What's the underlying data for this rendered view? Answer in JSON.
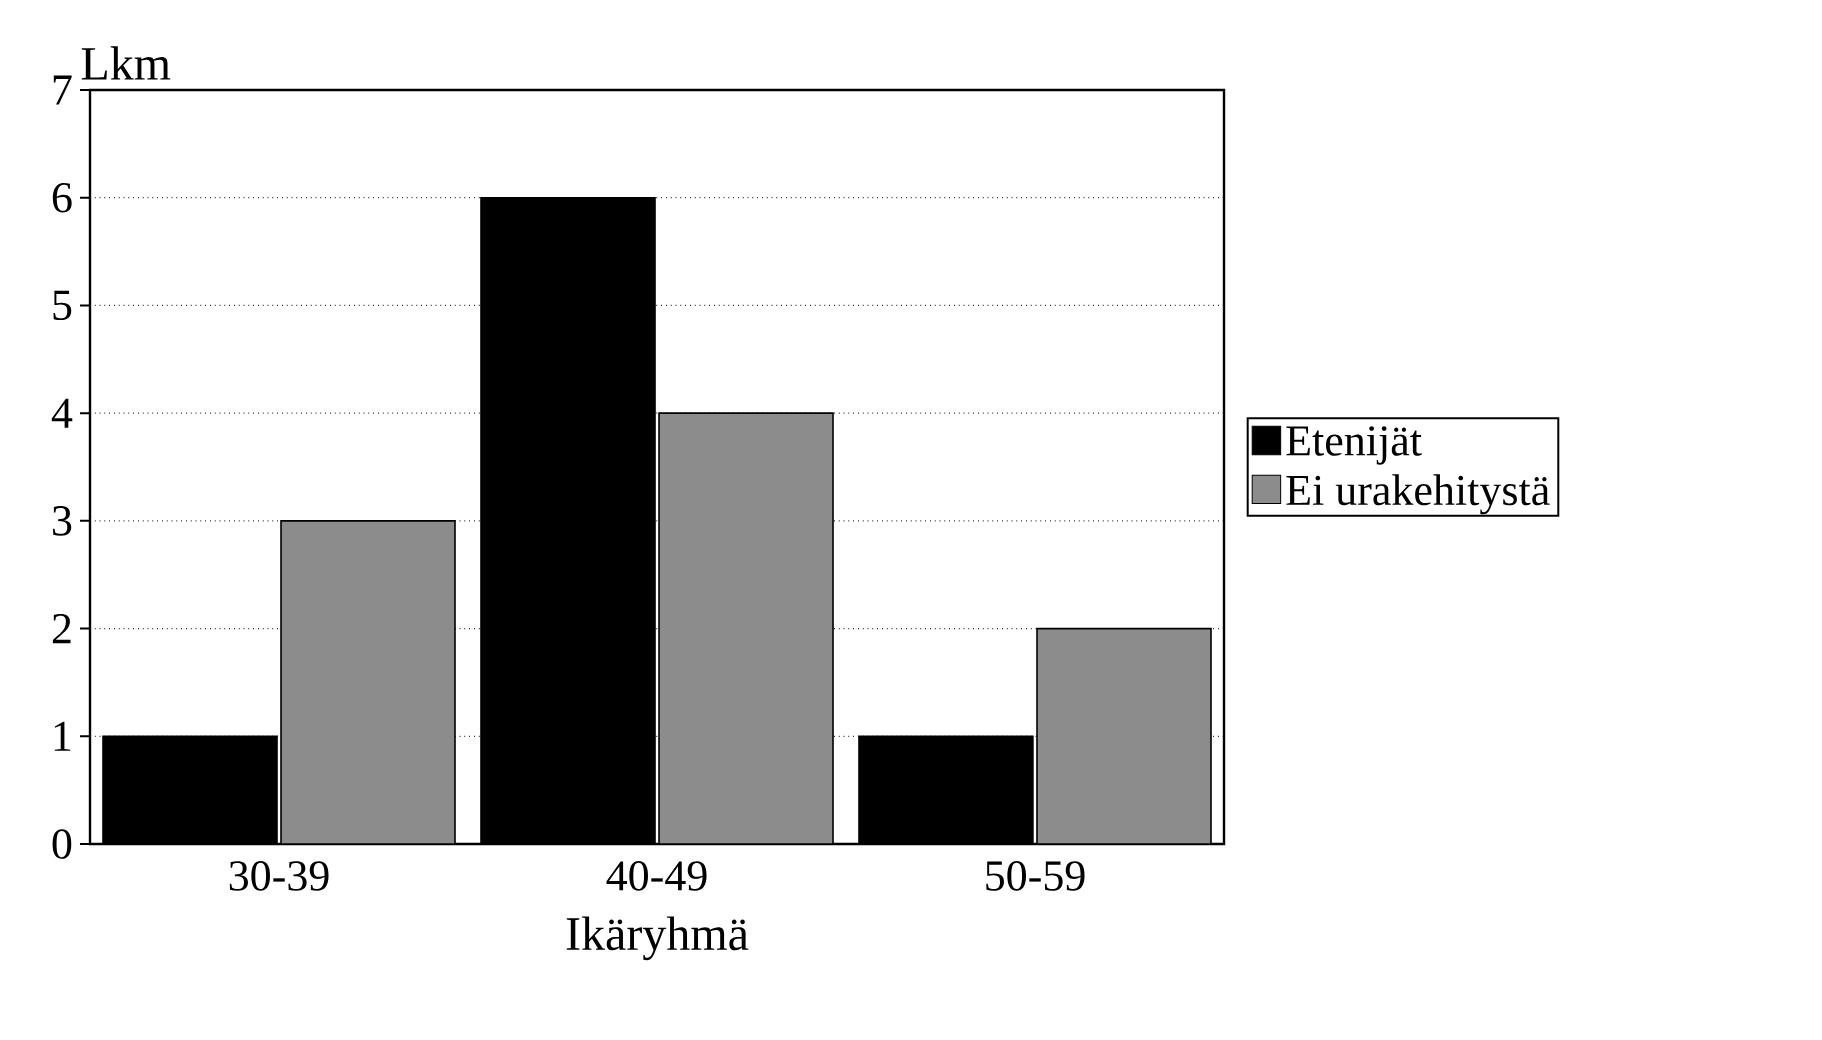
{
  "chart_data": {
    "type": "bar",
    "ylabel": "Lkm",
    "xlabel": "Ikäryhmä",
    "categories": [
      "30-39",
      "40-49",
      "50-59"
    ],
    "series": [
      {
        "name": "Etenijät",
        "color": "#000000",
        "values": [
          1,
          6,
          1
        ]
      },
      {
        "name": "Ei urakehitystä",
        "color": "#8c8c8c",
        "values": [
          3,
          4,
          2
        ]
      }
    ],
    "ylim": [
      0,
      7
    ],
    "yticks": [
      0,
      1,
      2,
      3,
      4,
      5,
      6,
      7
    ],
    "grid": "y",
    "legend": "right"
  }
}
